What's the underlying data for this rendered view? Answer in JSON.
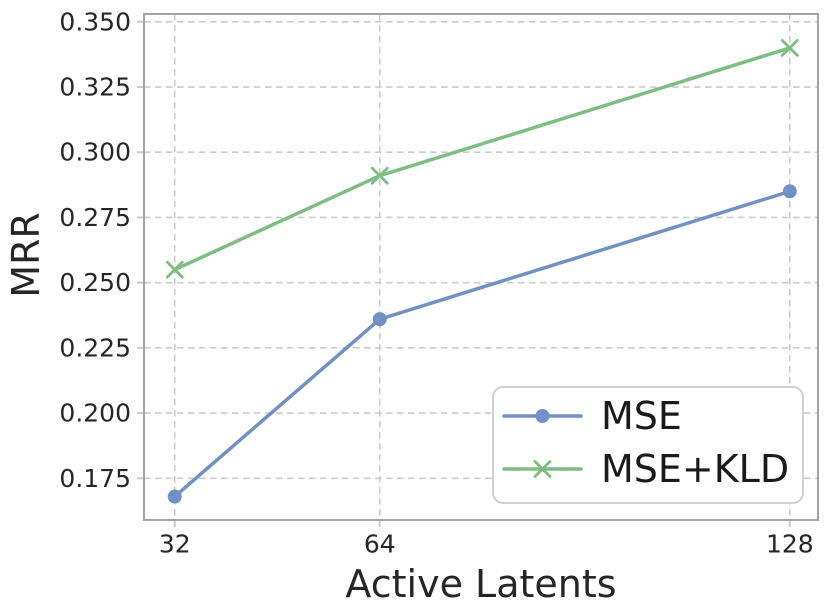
{
  "chart_data": {
    "type": "line",
    "title": "",
    "xlabel": "Active Latents",
    "ylabel": "MRR",
    "x": [
      32,
      64,
      128
    ],
    "series": [
      {
        "name": "MSE",
        "values": [
          0.168,
          0.236,
          0.285
        ],
        "color": "#7191c5",
        "marker": "circle"
      },
      {
        "name": "MSE+KLD",
        "values": [
          0.255,
          0.291,
          0.34
        ],
        "color": "#7dbe82",
        "marker": "x"
      }
    ],
    "xlim": [
      27.2,
      132.4
    ],
    "ylim": [
      0.159,
      0.353
    ],
    "xticks": [
      32,
      64,
      128
    ],
    "xtick_labels": [
      "32",
      "64",
      "128"
    ],
    "yticks": [
      0.175,
      0.2,
      0.225,
      0.25,
      0.275,
      0.3,
      0.325,
      0.35
    ],
    "ytick_labels": [
      "0.175",
      "0.200",
      "0.225",
      "0.250",
      "0.275",
      "0.300",
      "0.325",
      "0.350"
    ],
    "grid": true,
    "grid_style": "dashed",
    "legend_position": "lower right",
    "legend_entries": [
      "MSE",
      "MSE+KLD"
    ],
    "colors": {
      "grid": "#cccccc",
      "spine": "#a3a3a3",
      "tick_text": "#262626",
      "label_text": "#262626",
      "legend_text": "#1a1a1a",
      "legend_border": "#cccccc",
      "background": "#ffffff"
    }
  }
}
